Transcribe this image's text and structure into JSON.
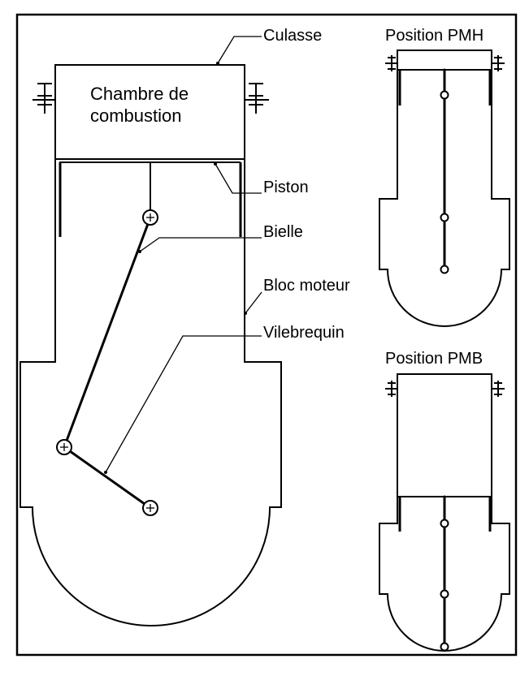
{
  "labels": {
    "culasse": "Culasse",
    "chambre_line1": "Chambre de",
    "chambre_line2": "combustion",
    "piston": "Piston",
    "bielle": "Bielle",
    "bloc_moteur": "Bloc moteur",
    "vilebrequin": "Vilebrequin",
    "position_pmh": "Position PMH",
    "position_pmb": "Position PMB"
  }
}
